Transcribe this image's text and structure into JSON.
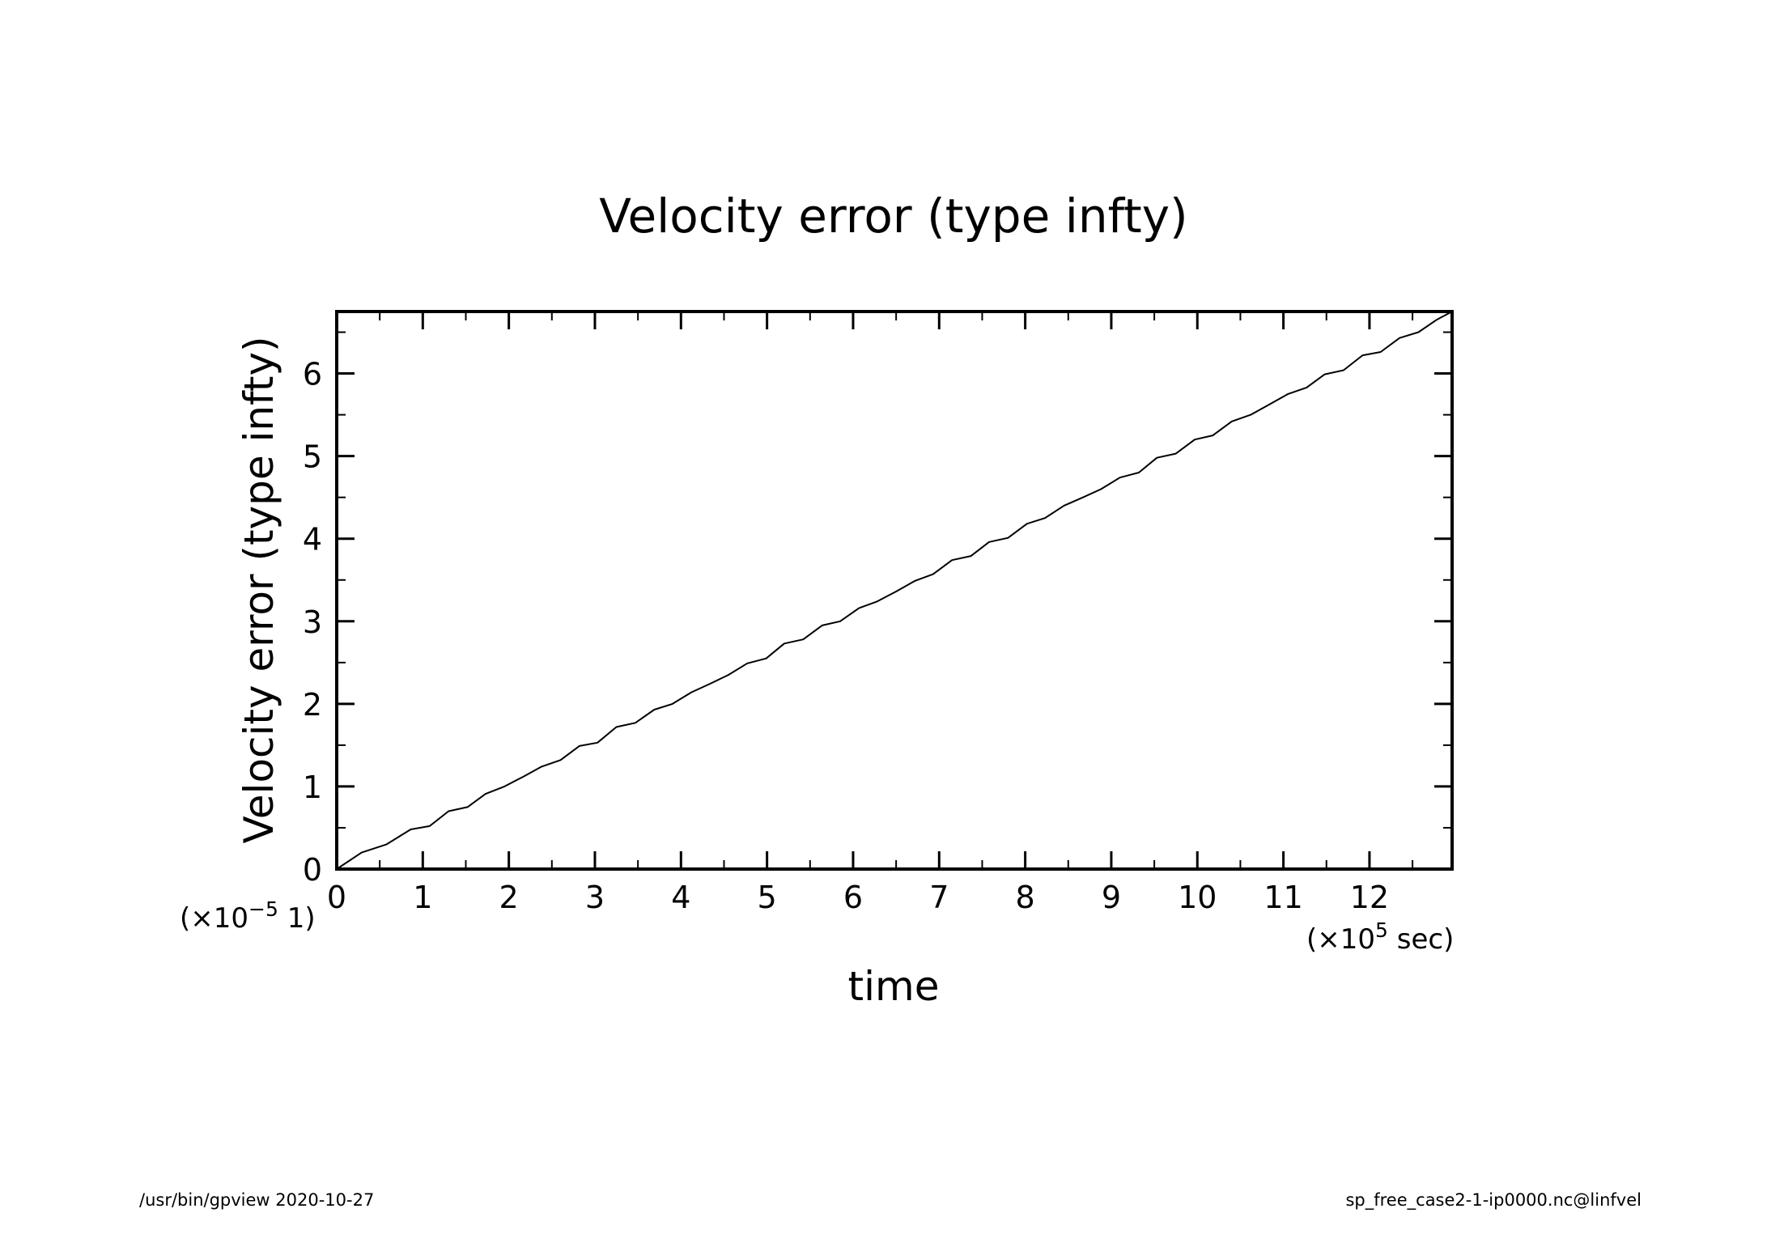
{
  "footer": {
    "left": "/usr/bin/gpview  2020-10-27",
    "right": "sp_free_case2-1-ip0000.nc@linfvel"
  },
  "chart_data": {
    "type": "line",
    "title": "Velocity error (type infty)",
    "xlabel": "time",
    "ylabel": "Velocity error (type infty)",
    "x_scale_label": {
      "prefix": "(×10",
      "exponent": "5",
      "suffix": " sec)"
    },
    "y_scale_label": {
      "prefix": "(×10",
      "exponent": "−5",
      "suffix": " 1)"
    },
    "xlim": [
      0,
      12.96
    ],
    "ylim": [
      0,
      6.75
    ],
    "x_ticks": [
      "0",
      "1",
      "2",
      "3",
      "4",
      "5",
      "6",
      "7",
      "8",
      "9",
      "10",
      "11",
      "12"
    ],
    "y_ticks": [
      "0",
      "1",
      "2",
      "3",
      "4",
      "5",
      "6"
    ],
    "grid": false,
    "line_color": "#000000",
    "series": [
      {
        "x": [
          0,
          0.29,
          0.58,
          0.86,
          1.08,
          1.3,
          1.52,
          1.73,
          1.95,
          2.17,
          2.38,
          2.6,
          2.82,
          3.03,
          3.25,
          3.47,
          3.69,
          3.9,
          4.12,
          4.33,
          4.55,
          4.77,
          4.99,
          5.2,
          5.42,
          5.64,
          5.85,
          6.07,
          6.28,
          6.5,
          6.72,
          6.93,
          7.15,
          7.37,
          7.58,
          7.8,
          8.02,
          8.23,
          8.45,
          8.67,
          8.88,
          9.1,
          9.32,
          9.53,
          9.75,
          9.97,
          10.18,
          10.4,
          10.62,
          10.83,
          11.05,
          11.27,
          11.48,
          11.7,
          11.92,
          12.13,
          12.35,
          12.57,
          12.78,
          12.96
        ],
        "y": [
          0,
          0.2,
          0.3,
          0.48,
          0.52,
          0.7,
          0.75,
          0.91,
          1.0,
          1.12,
          1.24,
          1.32,
          1.49,
          1.53,
          1.72,
          1.77,
          1.93,
          2.0,
          2.14,
          2.24,
          2.35,
          2.49,
          2.55,
          2.73,
          2.78,
          2.95,
          3.0,
          3.16,
          3.24,
          3.36,
          3.49,
          3.57,
          3.74,
          3.79,
          3.96,
          4.01,
          4.18,
          4.25,
          4.4,
          4.5,
          4.6,
          4.74,
          4.8,
          4.98,
          5.03,
          5.2,
          5.25,
          5.42,
          5.5,
          5.62,
          5.75,
          5.83,
          5.99,
          6.04,
          6.22,
          6.26,
          6.43,
          6.5,
          6.65,
          6.75
        ]
      }
    ]
  }
}
